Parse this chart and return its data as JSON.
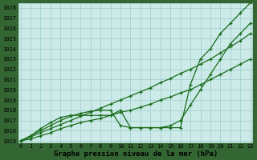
{
  "x": [
    0,
    1,
    2,
    3,
    4,
    5,
    6,
    7,
    8,
    9,
    10,
    11,
    12,
    13,
    14,
    15,
    16,
    17,
    18,
    19,
    20,
    21,
    22,
    23
  ],
  "series": [
    [
      1015.0,
      1015.2,
      1015.5,
      1015.8,
      1016.2,
      1016.5,
      1016.8,
      1017.0,
      1017.2,
      1017.5,
      1017.8,
      1018.0,
      1018.3,
      1018.6,
      1019.0,
      1019.3,
      1019.7,
      1020.0,
      1020.5,
      1021.0,
      1021.5,
      1022.0,
      1022.5,
      1023.0
    ],
    [
      1015.0,
      1015.4,
      1015.8,
      1016.2,
      1016.6,
      1017.0,
      1017.4,
      1017.8,
      1018.2,
      1018.6,
      1019.0,
      1019.4,
      1019.8,
      1020.2,
      1020.7,
      1021.1,
      1021.6,
      1022.0,
      1022.5,
      1023.0,
      1023.6,
      1024.2,
      1024.8,
      1025.5
    ],
    [
      1015.0,
      1015.5,
      1016.0,
      1016.5,
      1017.0,
      1017.4,
      1017.7,
      1017.9,
      1018.0,
      1018.0,
      1016.5,
      1016.3,
      1016.3,
      1016.3,
      1016.3,
      1016.5,
      1017.0,
      1018.5,
      1020.0,
      1021.5,
      1023.0,
      1024.5,
      1025.5,
      1026.5
    ],
    [
      1015.0,
      1015.5,
      1016.2,
      1016.8,
      1017.3,
      1017.5,
      1017.5,
      1017.5,
      1017.5,
      1017.5,
      1018.0,
      1016.3,
      1016.3,
      1016.3,
      1016.3,
      1016.3,
      1016.3,
      1020.5,
      1023.0,
      1024.0,
      1025.5,
      1026.5,
      1027.5,
      1028.5
    ]
  ],
  "line_color": "#1a6b1a",
  "bg_color": "#cceae8",
  "grid_color": "#99ccca",
  "xlabel": "Graphe pression niveau de la mer (hPa)",
  "ylim_min": 1014.8,
  "ylim_max": 1028.5,
  "xlim_min": -0.3,
  "xlim_max": 23.3,
  "yticks": [
    1015,
    1016,
    1017,
    1018,
    1019,
    1020,
    1021,
    1022,
    1023,
    1024,
    1025,
    1026,
    1027,
    1028
  ],
  "xticks": [
    0,
    1,
    2,
    3,
    4,
    5,
    6,
    7,
    8,
    9,
    10,
    11,
    12,
    13,
    14,
    15,
    16,
    17,
    18,
    19,
    20,
    21,
    22,
    23
  ],
  "xlabel_fontsize": 6.5,
  "tick_fontsize": 5.0,
  "marker": "+",
  "marker_size": 3,
  "linewidth": 0.9,
  "outer_bg": "#336633"
}
